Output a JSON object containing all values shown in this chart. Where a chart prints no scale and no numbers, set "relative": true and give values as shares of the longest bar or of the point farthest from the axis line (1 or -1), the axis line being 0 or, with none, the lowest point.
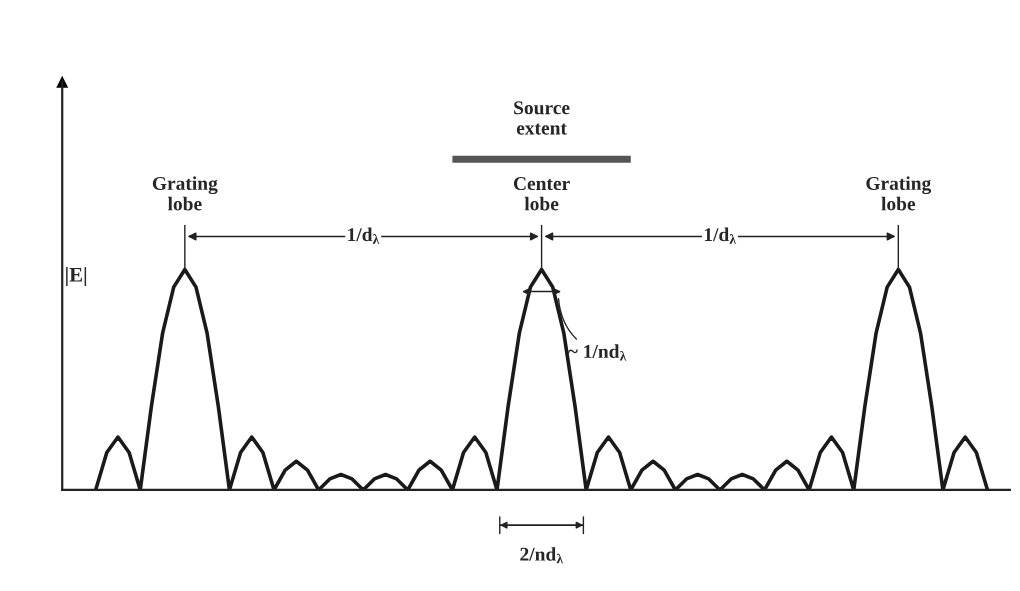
{
  "chart_data": {
    "type": "line",
    "relative": true,
    "color": "#1a1a1a",
    "ylabel": "|E|",
    "legend": false,
    "marker": "none",
    "line_style": "solid",
    "categories": [
      null,
      null,
      null,
      null,
      null,
      null,
      null,
      null,
      null,
      null,
      null,
      null,
      null,
      null,
      null,
      null,
      null,
      null,
      null,
      null,
      null,
      null,
      null,
      null,
      null,
      null,
      null,
      null,
      null,
      null,
      null,
      null,
      null,
      null,
      null,
      null,
      null,
      null,
      null,
      null,
      null,
      null,
      null,
      null,
      null,
      null,
      null,
      null,
      null,
      null,
      null,
      null,
      null,
      null,
      null,
      null,
      null,
      null,
      null,
      null,
      null,
      null,
      null,
      null,
      null,
      null,
      null,
      null,
      null,
      null,
      null,
      null,
      null,
      null,
      null,
      null,
      null,
      null,
      null,
      null,
      null
    ],
    "values": [
      0,
      0.17,
      0.24,
      0.17,
      0,
      0.38,
      0.71,
      0.92,
      1,
      0.92,
      0.71,
      0.38,
      0,
      0.17,
      0.24,
      0.17,
      0,
      0.09,
      0.13,
      0.09,
      0,
      0.05,
      0.07,
      0.05,
      0,
      0.05,
      0.07,
      0.05,
      0,
      0.09,
      0.13,
      0.09,
      0,
      0.17,
      0.24,
      0.17,
      0,
      0.38,
      0.71,
      0.92,
      1,
      0.92,
      0.71,
      0.38,
      0,
      0.17,
      0.24,
      0.17,
      0,
      0.09,
      0.13,
      0.09,
      0,
      0.05,
      0.07,
      0.05,
      0,
      0.05,
      0.07,
      0.05,
      0,
      0.09,
      0.13,
      0.09,
      0,
      0.17,
      0.24,
      0.17,
      0,
      0.38,
      0.71,
      0.92,
      1,
      0.92,
      0.71,
      0.38,
      0,
      0.17,
      0.24,
      0.17,
      0
    ],
    "annotations": [
      "Source extent",
      "Grating lobe",
      "Center lobe",
      "Grating lobe",
      "1/d$_{λ}$",
      "1/d$_{λ}$",
      "~ 1/nd$_{λ}$",
      "2/nd$_{λ}$"
    ]
  }
}
